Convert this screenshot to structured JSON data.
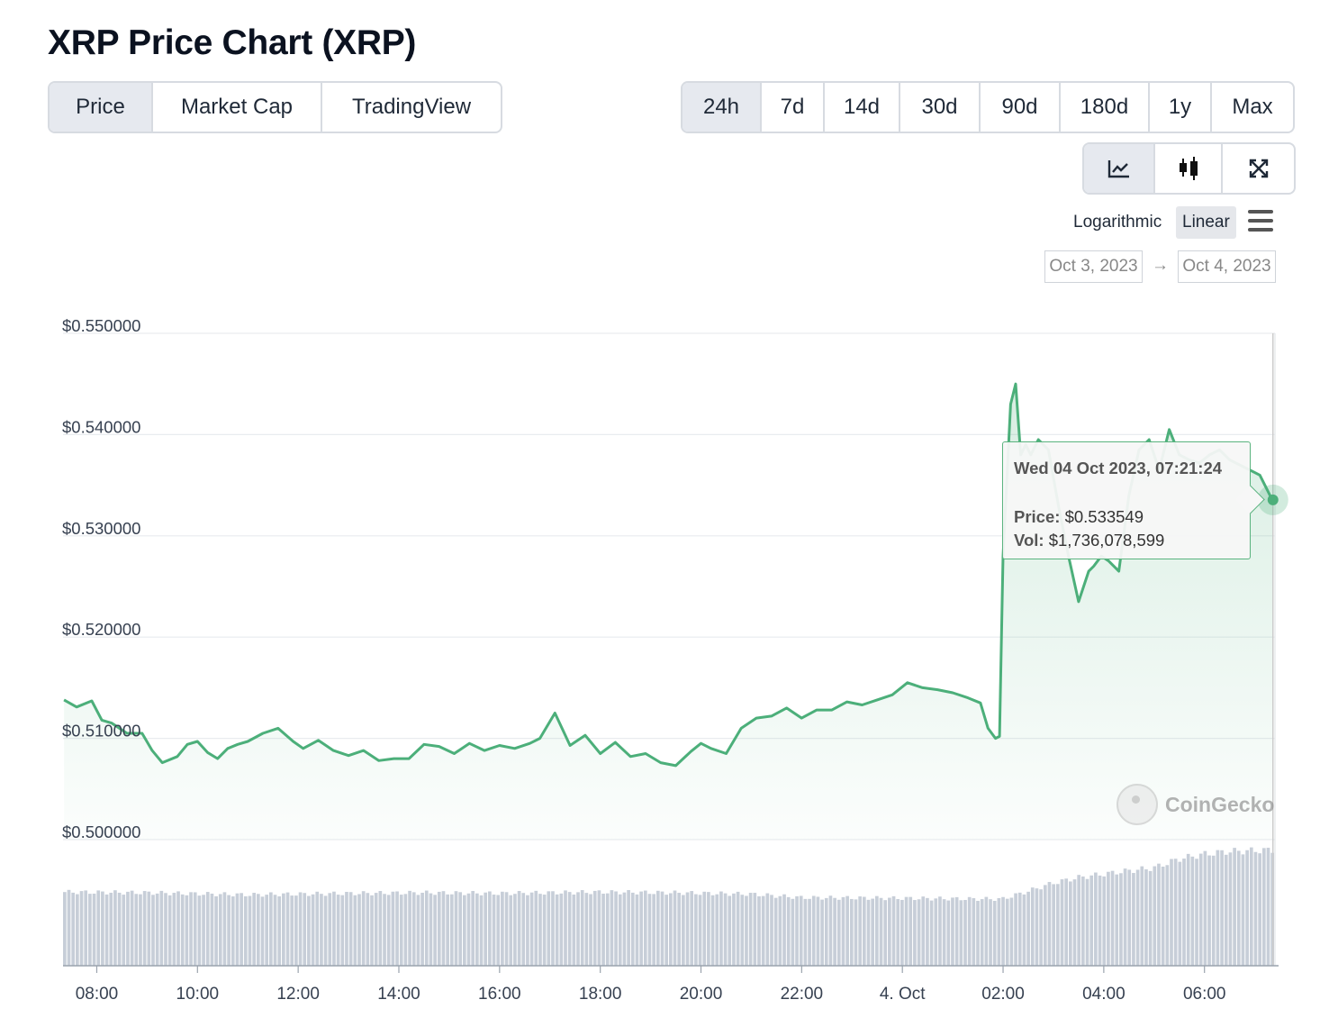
{
  "title": "XRP Price Chart (XRP)",
  "tabs": [
    {
      "label": "Price",
      "active": true
    },
    {
      "label": "Market Cap",
      "active": false
    },
    {
      "label": "TradingView",
      "active": false
    }
  ],
  "ranges": [
    {
      "label": "24h",
      "active": true
    },
    {
      "label": "7d",
      "active": false
    },
    {
      "label": "14d",
      "active": false
    },
    {
      "label": "30d",
      "active": false
    },
    {
      "label": "90d",
      "active": false
    },
    {
      "label": "180d",
      "active": false
    },
    {
      "label": "1y",
      "active": false
    },
    {
      "label": "Max",
      "active": false
    }
  ],
  "chart_types": [
    {
      "icon": "line-chart-icon",
      "active": true
    },
    {
      "icon": "candlestick-icon",
      "active": false
    },
    {
      "icon": "expand-icon",
      "active": false
    }
  ],
  "scale": {
    "logarithmic": "Logarithmic",
    "linear": "Linear",
    "active": "Linear"
  },
  "date_range": {
    "from": "Oct 3, 2023",
    "to": "Oct 4, 2023",
    "arrow": "→"
  },
  "tooltip": {
    "date": "Wed 04 Oct 2023, 07:21:24",
    "price_label": "Price:",
    "price_value": "$0.533549",
    "vol_label": "Vol:",
    "vol_value": "$1,736,078,599"
  },
  "watermark": "CoinGecko",
  "colors": {
    "line": "#4caf7a",
    "volume": "#c7ced8",
    "grid": "#e9ecef",
    "accent": "#5ab37f"
  },
  "chart_data": {
    "type": "area",
    "title": "",
    "xlabel": "",
    "ylabel": "",
    "ylim": [
      0.5,
      0.55
    ],
    "y_ticks": [
      {
        "value": 0.55,
        "label": "$0.550000"
      },
      {
        "value": 0.54,
        "label": "$0.540000"
      },
      {
        "value": 0.53,
        "label": "$0.530000"
      },
      {
        "value": 0.52,
        "label": "$0.520000"
      },
      {
        "value": 0.51,
        "label": "$0.510000"
      },
      {
        "value": 0.5,
        "label": "$0.500000"
      }
    ],
    "x_range_hours": [
      7.33,
      31.4
    ],
    "x_ticks": [
      {
        "hour": 8,
        "label": "08:00"
      },
      {
        "hour": 10,
        "label": "10:00"
      },
      {
        "hour": 12,
        "label": "12:00"
      },
      {
        "hour": 14,
        "label": "14:00"
      },
      {
        "hour": 16,
        "label": "16:00"
      },
      {
        "hour": 18,
        "label": "18:00"
      },
      {
        "hour": 20,
        "label": "20:00"
      },
      {
        "hour": 22,
        "label": "22:00"
      },
      {
        "hour": 24,
        "label": "4. Oct"
      },
      {
        "hour": 26,
        "label": "02:00"
      },
      {
        "hour": 28,
        "label": "04:00"
      },
      {
        "hour": 30,
        "label": "06:00"
      }
    ],
    "price_series": {
      "hours": [
        7.35,
        7.6,
        7.9,
        8.1,
        8.3,
        8.6,
        8.9,
        9.1,
        9.3,
        9.6,
        9.8,
        10.0,
        10.2,
        10.4,
        10.6,
        10.8,
        11.0,
        11.3,
        11.6,
        11.9,
        12.1,
        12.4,
        12.7,
        13.0,
        13.3,
        13.6,
        13.9,
        14.2,
        14.5,
        14.8,
        15.1,
        15.4,
        15.7,
        16.0,
        16.3,
        16.6,
        16.8,
        17.1,
        17.4,
        17.7,
        18.0,
        18.3,
        18.6,
        18.9,
        19.2,
        19.5,
        19.8,
        20.0,
        20.2,
        20.5,
        20.8,
        21.1,
        21.4,
        21.7,
        22.0,
        22.3,
        22.6,
        22.9,
        23.2,
        23.5,
        23.8,
        24.1,
        24.4,
        24.7,
        25.0,
        25.3,
        25.55,
        25.7,
        25.85,
        25.93,
        26.0,
        26.15,
        26.25,
        26.35,
        26.45,
        26.55,
        26.7,
        26.9,
        27.1,
        27.3,
        27.5,
        27.7,
        27.8,
        27.95,
        28.1,
        28.3,
        28.5,
        28.7,
        28.9,
        29.1,
        29.3,
        29.5,
        29.7,
        29.9,
        30.1,
        30.3,
        30.5,
        30.7,
        30.9,
        31.1,
        31.25,
        31.35
      ],
      "prices": [
        0.5138,
        0.5131,
        0.5137,
        0.5118,
        0.5115,
        0.5105,
        0.5105,
        0.5088,
        0.5076,
        0.5082,
        0.5094,
        0.5097,
        0.5086,
        0.508,
        0.509,
        0.5094,
        0.5097,
        0.5105,
        0.511,
        0.5097,
        0.509,
        0.5098,
        0.5088,
        0.5083,
        0.5088,
        0.5078,
        0.508,
        0.508,
        0.5094,
        0.5092,
        0.5085,
        0.5095,
        0.5088,
        0.5093,
        0.509,
        0.5095,
        0.51,
        0.5125,
        0.5093,
        0.5103,
        0.5085,
        0.5096,
        0.5082,
        0.5085,
        0.5076,
        0.5073,
        0.5087,
        0.5095,
        0.509,
        0.5085,
        0.511,
        0.512,
        0.5122,
        0.513,
        0.512,
        0.5128,
        0.5128,
        0.5136,
        0.5133,
        0.5138,
        0.5143,
        0.5155,
        0.515,
        0.5148,
        0.5145,
        0.514,
        0.5135,
        0.511,
        0.51,
        0.5102,
        0.528,
        0.543,
        0.545,
        0.538,
        0.539,
        0.538,
        0.5395,
        0.5385,
        0.533,
        0.528,
        0.5235,
        0.5265,
        0.527,
        0.528,
        0.5275,
        0.5265,
        0.534,
        0.5385,
        0.5395,
        0.5365,
        0.5405,
        0.538,
        0.5375,
        0.5372,
        0.538,
        0.5385,
        0.5375,
        0.537,
        0.5365,
        0.536,
        0.5345,
        0.5335
      ]
    },
    "volume_series": {
      "hours": [
        7.35,
        9.0,
        11.0,
        13.0,
        14.5,
        16.0,
        18.0,
        19.5,
        21.0,
        22.0,
        24.0,
        25.5,
        26.0,
        26.5,
        27.0,
        27.5,
        28.0,
        28.5,
        29.0,
        29.5,
        30.0,
        30.5,
        31.35
      ],
      "volumes_billion_usd": [
        1.07,
        1.06,
        1.03,
        1.05,
        1.06,
        1.05,
        1.07,
        1.06,
        1.04,
        0.99,
        0.98,
        0.97,
        0.97,
        1.08,
        1.2,
        1.28,
        1.33,
        1.38,
        1.42,
        1.55,
        1.62,
        1.66,
        1.68
      ]
    },
    "hover_point": {
      "hour": 31.36,
      "price": 0.533549
    }
  }
}
